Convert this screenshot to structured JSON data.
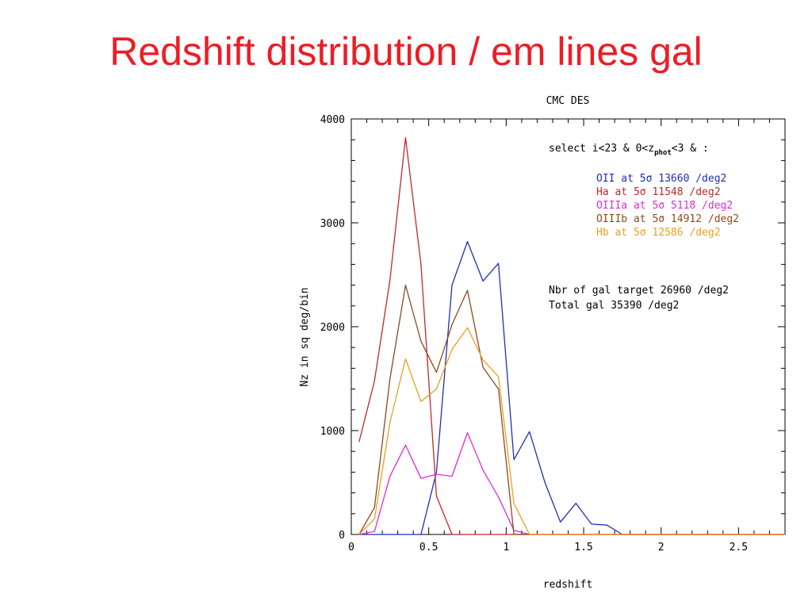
{
  "slide": {
    "title": "Redshift distribution / em lines gal"
  },
  "colors": {
    "OII": "#1f2fb5",
    "Ha": "#c0282a",
    "OIIIa": "#e22bd6",
    "OIIIb": "#8b4a1f",
    "Hb": "#e8a020",
    "text": "#000000"
  },
  "chart_data": {
    "type": "line",
    "title": "CMC DES",
    "xlabel": "redshift",
    "ylabel": "Nz in sq deg/bin",
    "xlim": [
      0,
      2.8
    ],
    "ylim": [
      0,
      4000
    ],
    "x_ticks": [
      0,
      0.5,
      1,
      1.5,
      2,
      2.5
    ],
    "x_tick_labels": [
      "0",
      "0.5",
      "1",
      "1.5",
      "2",
      "2.5"
    ],
    "y_ticks": [
      0,
      1000,
      2000,
      3000,
      4000
    ],
    "y_tick_labels": [
      "0",
      "1000",
      "2000",
      "3000",
      "4000"
    ],
    "legend_position": "top-right",
    "annotations": {
      "select_prefix": "select i<23 & 0<z",
      "select_sub": "phot",
      "select_suffix": "<3 & :",
      "nbr_gal_target": "Nbr of gal target 26960 /deg2",
      "total_gal": "Total gal 35390 /deg2"
    },
    "series": [
      {
        "name": "OII at 5σ 13660 /deg2",
        "color_key": "OII",
        "x": [
          0.05,
          0.15,
          0.25,
          0.35,
          0.45,
          0.55,
          0.65,
          0.75,
          0.85,
          0.95,
          1.05,
          1.15,
          1.25,
          1.35,
          1.45,
          1.55,
          1.65,
          1.75,
          1.85,
          2.0,
          2.5,
          2.8
        ],
        "y": [
          0,
          0,
          0,
          0,
          0,
          600,
          2400,
          2820,
          2440,
          2610,
          720,
          990,
          500,
          120,
          300,
          100,
          90,
          0,
          0,
          0,
          0,
          0
        ]
      },
      {
        "name": "Ha at 5σ 11548 /deg2",
        "color_key": "Ha",
        "x": [
          0.05,
          0.15,
          0.25,
          0.35,
          0.45,
          0.55,
          0.65,
          0.75,
          1.0,
          1.5,
          2.0,
          2.5,
          2.8
        ],
        "y": [
          890,
          1480,
          2450,
          3820,
          2600,
          370,
          0,
          0,
          0,
          0,
          0,
          0,
          0
        ]
      },
      {
        "name": "OIIIa at 5σ 5118 /deg2",
        "color_key": "OIIIa",
        "x": [
          0.05,
          0.15,
          0.25,
          0.35,
          0.45,
          0.55,
          0.65,
          0.75,
          0.85,
          0.95,
          1.05,
          1.15,
          1.5,
          2.0,
          2.5,
          2.8
        ],
        "y": [
          0,
          30,
          560,
          860,
          540,
          580,
          560,
          980,
          620,
          360,
          40,
          0,
          0,
          0,
          0,
          0
        ]
      },
      {
        "name": "OIIIb at 5σ 14912 /deg2",
        "color_key": "OIIIb",
        "x": [
          0.05,
          0.15,
          0.25,
          0.35,
          0.45,
          0.55,
          0.65,
          0.75,
          0.85,
          0.95,
          1.05,
          1.15,
          1.5,
          2.0,
          2.5,
          2.8
        ],
        "y": [
          0,
          260,
          1500,
          2400,
          1860,
          1560,
          2020,
          2350,
          1610,
          1400,
          0,
          0,
          0,
          0,
          0,
          0
        ]
      },
      {
        "name": "Hb at 5σ 12586 /deg2",
        "color_key": "Hb",
        "x": [
          0.05,
          0.15,
          0.25,
          0.35,
          0.45,
          0.55,
          0.65,
          0.75,
          0.85,
          0.95,
          1.05,
          1.15,
          1.5,
          2.0,
          2.5,
          2.8
        ],
        "y": [
          0,
          150,
          1080,
          1690,
          1280,
          1400,
          1780,
          1990,
          1680,
          1520,
          300,
          0,
          0,
          0,
          0,
          0
        ]
      }
    ]
  }
}
